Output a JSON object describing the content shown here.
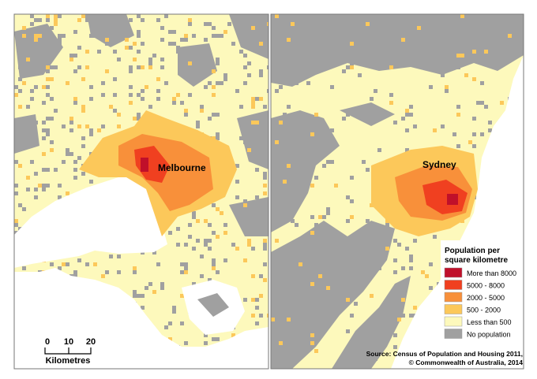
{
  "maps": [
    {
      "city": "Melbourne"
    },
    {
      "city": "Sydney"
    }
  ],
  "scale_bar": {
    "ticks": [
      "0",
      "10",
      "20"
    ],
    "unit": "Kilometres"
  },
  "legend": {
    "title_line1": "Population per",
    "title_line2": "square kilometre",
    "items": [
      {
        "label": "More than 8000",
        "color": "#c0102a"
      },
      {
        "label": "5000 - 8000",
        "color": "#f04020"
      },
      {
        "label": "2000 - 5000",
        "color": "#f8903a"
      },
      {
        "label": "500 - 2000",
        "color": "#fcc85a"
      },
      {
        "label": "Less than 500",
        "color": "#fdf9bc"
      },
      {
        "label": "No population",
        "color": "#a0a0a0"
      }
    ]
  },
  "source": {
    "line1": "Source: Census of Population and Housing 2011,",
    "line2": "© Commonwealth of Australia, 2014"
  }
}
